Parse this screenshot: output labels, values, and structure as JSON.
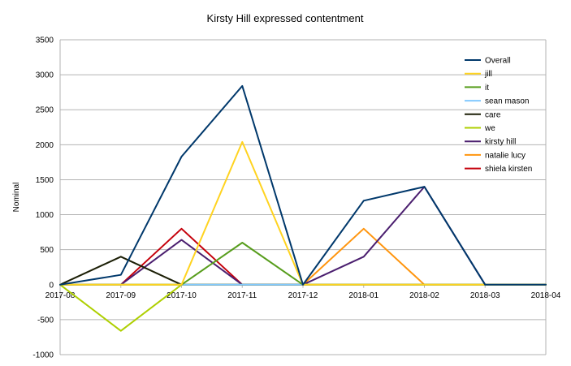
{
  "chart_data": {
    "type": "line",
    "title": "Kirsty Hill expressed contentment",
    "xlabel": "",
    "ylabel": "Nominal",
    "categories": [
      "2017-08",
      "2017-09",
      "2017-10",
      "2017-11",
      "2017-12",
      "2018-01",
      "2018-02",
      "2018-03",
      "2018-04"
    ],
    "ylim": [
      -1000,
      3500
    ],
    "yticks": [
      -1000,
      -500,
      0,
      500,
      1000,
      1500,
      2000,
      2500,
      3000,
      3500
    ],
    "grid": true,
    "legend_position": "top-right",
    "series": [
      {
        "name": "Overall",
        "color": "#00386b",
        "values": [
          0,
          140,
          1830,
          2840,
          0,
          1200,
          1400,
          0,
          0
        ]
      },
      {
        "name": "jill",
        "color": "#ffd320",
        "values": [
          0,
          0,
          0,
          2040,
          0,
          0,
          0,
          0,
          0
        ]
      },
      {
        "name": "it",
        "color": "#579d1c",
        "values": [
          0,
          0,
          0,
          600,
          0,
          0,
          0,
          0,
          0
        ]
      },
      {
        "name": "sean mason",
        "color": "#83caff",
        "values": [
          0,
          0,
          0,
          0,
          0,
          0,
          0,
          0,
          0
        ]
      },
      {
        "name": "care",
        "color": "#1c1f06",
        "values": [
          0,
          400,
          0,
          0,
          0,
          0,
          0,
          0,
          0
        ]
      },
      {
        "name": "we",
        "color": "#aecf00",
        "values": [
          0,
          -660,
          0,
          0,
          0,
          0,
          0,
          0,
          0
        ]
      },
      {
        "name": "kirsty hill",
        "color": "#4b1f6f",
        "values": [
          0,
          0,
          640,
          0,
          0,
          400,
          1400,
          0,
          0
        ]
      },
      {
        "name": "natalie lucy",
        "color": "#ff950e",
        "values": [
          0,
          0,
          0,
          0,
          0,
          800,
          0,
          0,
          0
        ]
      },
      {
        "name": "shiela kirsten",
        "color": "#c5000b",
        "values": [
          0,
          0,
          800,
          0,
          0,
          0,
          0,
          0,
          0
        ]
      }
    ]
  }
}
